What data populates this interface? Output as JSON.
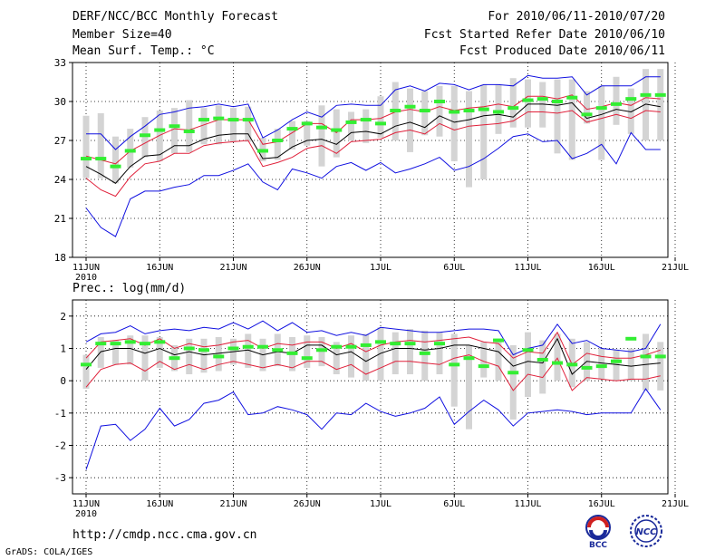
{
  "header": {
    "title": "DERF/NCC/BCC Monthly Forecast",
    "member_size": "Member Size=40",
    "variable": "Mean Surf. Temp.: °C",
    "period": "For 2010/06/11-2010/07/20",
    "refer_date": "Fcst Started Refer Date 2010/06/10",
    "produced_date": "Fcst Produced Date 2010/06/11"
  },
  "footer": {
    "url": "http://cmdp.ncc.cma.gov.cn",
    "grads": "GrADS: COLA/IGES",
    "logo_bcc": "BCC",
    "logo_ncc": "NCC"
  },
  "colors": {
    "mean_line": "#000000",
    "envelope_red": "#e0203a",
    "envelope_blue": "#1010e0",
    "box": "#d4d4d4",
    "median": "#33ee33"
  },
  "chart_data": [
    {
      "type": "line",
      "title": "Mean Surf. Temp.: °C",
      "x_tick_labels": [
        "11JUN",
        "16JUN",
        "21JUN",
        "26JUN",
        "1JUL",
        "6JUL",
        "11JUL",
        "16JUL",
        "21JUL"
      ],
      "x_year_label": "2010",
      "ylim": [
        18,
        33
      ],
      "yticks": [
        18,
        21,
        24,
        27,
        30,
        33
      ],
      "grid": true,
      "n_days": 40,
      "series": [
        {
          "name": "ensemble mean",
          "color": "#000000",
          "values": [
            25.0,
            24.4,
            23.7,
            25.0,
            25.8,
            25.9,
            26.6,
            26.6,
            27.1,
            27.4,
            27.5,
            27.5,
            25.6,
            25.7,
            26.5,
            27.0,
            27.1,
            26.7,
            27.6,
            27.7,
            27.5,
            28.1,
            28.4,
            28.0,
            28.9,
            28.4,
            28.6,
            28.9,
            29.0,
            28.8,
            29.8,
            29.8,
            29.7,
            29.9,
            28.7,
            29.0,
            29.4,
            29.2,
            29.8,
            29.6
          ]
        },
        {
          "name": "mean + spread",
          "color": "#e0203a",
          "values": [
            25.8,
            25.5,
            25.2,
            26.2,
            26.8,
            27.4,
            27.9,
            27.8,
            28.2,
            28.6,
            28.6,
            28.6,
            26.7,
            26.9,
            27.6,
            28.3,
            28.3,
            27.6,
            28.6,
            28.6,
            28.7,
            29.2,
            29.4,
            29.2,
            29.6,
            29.3,
            29.5,
            29.6,
            29.8,
            29.6,
            30.4,
            30.4,
            30.2,
            30.5,
            29.4,
            29.6,
            29.9,
            29.7,
            30.3,
            30.2
          ]
        },
        {
          "name": "mean - spread",
          "color": "#e0203a",
          "values": [
            24.1,
            23.2,
            22.7,
            24.2,
            25.2,
            25.4,
            26.0,
            26.0,
            26.6,
            26.8,
            26.9,
            27.0,
            25.0,
            25.3,
            25.7,
            26.4,
            26.6,
            26.0,
            26.9,
            27.0,
            27.1,
            27.6,
            27.8,
            27.5,
            28.3,
            27.8,
            28.1,
            28.2,
            28.3,
            28.5,
            29.2,
            29.2,
            29.1,
            29.3,
            28.4,
            28.7,
            29.0,
            28.7,
            29.3,
            29.2
          ]
        },
        {
          "name": "ensemble max",
          "color": "#1010e0",
          "values": [
            27.5,
            27.5,
            26.3,
            27.3,
            28.1,
            29.0,
            29.2,
            29.5,
            29.6,
            29.8,
            29.6,
            29.8,
            27.2,
            27.8,
            28.6,
            29.2,
            28.8,
            29.7,
            29.8,
            29.7,
            29.7,
            30.9,
            31.2,
            30.8,
            31.4,
            31.3,
            30.9,
            31.3,
            31.3,
            31.2,
            32.0,
            31.8,
            31.8,
            31.9,
            30.5,
            31.2,
            31.2,
            31.2,
            31.9,
            31.9
          ]
        },
        {
          "name": "ensemble min",
          "color": "#1010e0",
          "values": [
            21.8,
            20.3,
            19.6,
            22.5,
            23.1,
            23.1,
            23.4,
            23.6,
            24.3,
            24.3,
            24.7,
            25.2,
            23.8,
            23.2,
            24.8,
            24.5,
            24.1,
            25.0,
            25.3,
            24.7,
            25.3,
            24.5,
            24.8,
            25.2,
            25.7,
            24.7,
            25.0,
            25.6,
            26.4,
            27.3,
            27.5,
            26.9,
            27.0,
            25.6,
            26.0,
            26.7,
            25.2,
            27.6,
            26.3,
            26.3
          ]
        }
      ],
      "boxes": {
        "low": [
          24.1,
          24.1,
          23.7,
          24.9,
          25.7,
          25.4,
          26.0,
          26.1,
          26.7,
          26.7,
          26.9,
          26.9,
          25.4,
          25.5,
          26.3,
          26.6,
          25.0,
          25.7,
          27.0,
          26.8,
          27.2,
          27.0,
          26.1,
          27.4,
          27.3,
          25.4,
          23.4,
          24.0,
          27.5,
          28.0,
          28.0,
          28.0,
          26.0,
          25.5,
          28.3,
          25.5,
          28.2,
          27.5,
          27.0,
          27.0
        ],
        "high": [
          28.9,
          29.1,
          27.3,
          27.9,
          28.8,
          29.3,
          29.5,
          30.1,
          29.5,
          29.7,
          29.5,
          29.6,
          27.2,
          27.9,
          28.5,
          28.5,
          29.7,
          29.4,
          29.2,
          29.4,
          30.4,
          31.5,
          31.0,
          30.8,
          31.2,
          31.2,
          30.8,
          31.3,
          31.3,
          31.8,
          31.7,
          31.5,
          31.7,
          31.7,
          30.8,
          31.2,
          31.9,
          31.0,
          32.5,
          32.5
        ],
        "median": [
          25.6,
          25.6,
          25.0,
          26.2,
          27.4,
          27.8,
          28.1,
          27.7,
          28.6,
          28.7,
          28.6,
          28.6,
          26.2,
          27.0,
          27.9,
          28.3,
          28.0,
          27.8,
          28.4,
          28.6,
          28.3,
          29.3,
          29.6,
          29.3,
          30.0,
          29.2,
          29.3,
          29.4,
          29.2,
          29.5,
          30.1,
          30.2,
          30.0,
          30.3,
          29.0,
          29.5,
          29.8,
          30.2,
          30.5,
          30.5
        ]
      }
    },
    {
      "type": "line",
      "title": "Prec.: log(mm/d)",
      "x_tick_labels": [
        "11JUN",
        "16JUN",
        "21JUN",
        "26JUN",
        "1JUL",
        "6JUL",
        "11JUL",
        "16JUL",
        "21JUL"
      ],
      "x_year_label": "2010",
      "ylim": [
        -3.5,
        2.5
      ],
      "yticks": [
        -3,
        -2,
        -1,
        0,
        1,
        2
      ],
      "grid": true,
      "n_days": 40,
      "series": [
        {
          "name": "ensemble mean",
          "color": "#000000",
          "values": [
            0.35,
            0.9,
            1.0,
            1.0,
            0.85,
            1.0,
            0.8,
            0.9,
            0.8,
            0.85,
            0.9,
            0.95,
            0.8,
            0.9,
            0.85,
            1.1,
            1.1,
            0.8,
            0.9,
            0.6,
            0.85,
            1.0,
            1.0,
            0.95,
            1.0,
            1.1,
            1.1,
            1.0,
            0.9,
            0.45,
            0.6,
            0.55,
            1.3,
            0.2,
            0.6,
            0.55,
            0.5,
            0.45,
            0.5,
            0.55
          ]
        },
        {
          "name": "mean + spread",
          "color": "#e0203a",
          "values": [
            0.7,
            1.2,
            1.25,
            1.3,
            1.1,
            1.3,
            1.0,
            1.15,
            1.05,
            1.1,
            1.2,
            1.25,
            1.0,
            1.15,
            1.1,
            1.2,
            1.2,
            1.0,
            1.15,
            0.9,
            1.1,
            1.2,
            1.25,
            1.2,
            1.25,
            1.3,
            1.35,
            1.2,
            1.15,
            0.7,
            0.9,
            0.85,
            1.5,
            0.5,
            0.85,
            0.75,
            0.7,
            0.7,
            0.8,
            0.95
          ]
        },
        {
          "name": "mean - spread",
          "color": "#e0203a",
          "values": [
            -0.2,
            0.35,
            0.5,
            0.55,
            0.3,
            0.6,
            0.35,
            0.5,
            0.35,
            0.5,
            0.6,
            0.5,
            0.4,
            0.5,
            0.4,
            0.6,
            0.6,
            0.35,
            0.5,
            0.2,
            0.4,
            0.6,
            0.6,
            0.55,
            0.5,
            0.7,
            0.8,
            0.6,
            0.45,
            -0.3,
            0.2,
            0.1,
            0.7,
            -0.3,
            0.1,
            0.05,
            0.0,
            0.05,
            0.05,
            0.15
          ]
        },
        {
          "name": "ensemble max",
          "color": "#1010e0",
          "values": [
            1.2,
            1.45,
            1.5,
            1.7,
            1.45,
            1.55,
            1.6,
            1.55,
            1.65,
            1.6,
            1.8,
            1.6,
            1.85,
            1.55,
            1.8,
            1.5,
            1.55,
            1.4,
            1.5,
            1.4,
            1.65,
            1.6,
            1.55,
            1.5,
            1.5,
            1.55,
            1.6,
            1.6,
            1.55,
            0.8,
            1.0,
            1.1,
            1.75,
            1.15,
            1.25,
            1.0,
            0.95,
            0.9,
            1.0,
            1.75
          ]
        },
        {
          "name": "ensemble min",
          "color": "#1010e0",
          "values": [
            -2.75,
            -1.4,
            -1.35,
            -1.85,
            -1.5,
            -0.85,
            -1.4,
            -1.2,
            -0.7,
            -0.6,
            -0.35,
            -1.05,
            -1.0,
            -0.8,
            -0.9,
            -1.05,
            -1.5,
            -1.0,
            -1.05,
            -0.7,
            -0.95,
            -1.1,
            -1.0,
            -0.85,
            -0.5,
            -1.35,
            -0.95,
            -0.6,
            -0.9,
            -1.4,
            -1.0,
            -0.95,
            -0.9,
            -0.95,
            -1.05,
            -1.0,
            -1.0,
            -1.0,
            -0.25,
            -0.9
          ]
        },
        {
          "name": "ensemble max tail",
          "color": "#1010e0",
          "values": []
        }
      ],
      "boxes": {
        "low": [
          -0.25,
          0.4,
          0.5,
          0.5,
          0.0,
          0.4,
          0.3,
          0.2,
          0.25,
          0.3,
          0.5,
          0.4,
          0.3,
          0.45,
          0.3,
          0.4,
          0.45,
          0.2,
          0.1,
          0.0,
          0.0,
          0.2,
          0.2,
          0.0,
          0.2,
          -0.8,
          -1.5,
          0.1,
          0.0,
          -1.2,
          -0.5,
          -0.4,
          0.0,
          -0.2,
          0.0,
          0.05,
          0.0,
          0.0,
          -0.3,
          -0.3
        ],
        "high": [
          0.8,
          1.35,
          1.25,
          1.4,
          1.4,
          1.35,
          1.1,
          1.3,
          1.3,
          1.35,
          1.3,
          1.45,
          1.3,
          1.45,
          1.35,
          1.4,
          1.35,
          1.2,
          1.4,
          1.45,
          1.65,
          1.5,
          1.6,
          1.55,
          1.5,
          1.45,
          1.1,
          1.2,
          1.3,
          1.1,
          1.5,
          1.25,
          1.45,
          1.3,
          1.2,
          1.0,
          0.95,
          1.0,
          1.45,
          1.2
        ],
        "median": [
          0.5,
          1.15,
          1.15,
          1.2,
          1.15,
          1.2,
          0.7,
          1.0,
          0.95,
          0.75,
          1.0,
          1.05,
          1.05,
          0.95,
          0.85,
          0.7,
          0.95,
          1.05,
          1.05,
          1.1,
          1.2,
          1.15,
          1.15,
          0.85,
          1.15,
          0.5,
          0.7,
          0.45,
          1.25,
          0.25,
          0.95,
          0.65,
          0.55,
          0.5,
          0.4,
          0.45,
          0.6,
          1.3,
          0.75,
          0.75
        ]
      }
    }
  ]
}
